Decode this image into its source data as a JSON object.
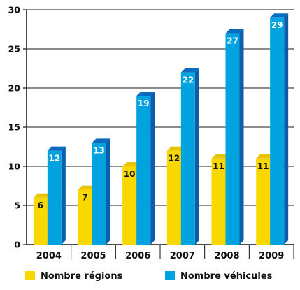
{
  "chart_data": {
    "type": "bar",
    "categories": [
      "2004",
      "2005",
      "2006",
      "2007",
      "2008",
      "2009"
    ],
    "series": [
      {
        "name": "Nombre régions",
        "values": [
          6,
          7,
          10,
          12,
          11,
          11
        ],
        "color": "#f9d800",
        "side_color": "#d9b400",
        "top_color": "#e8c400",
        "label_color": "#111111"
      },
      {
        "name": "Nombre véhicules",
        "values": [
          12,
          13,
          19,
          22,
          27,
          29
        ],
        "color": "#00a3e0",
        "side_color": "#0d5ea8",
        "top_color": "#0b6cbf",
        "label_color": "#ffffff"
      }
    ],
    "ylim": [
      0,
      30
    ],
    "yticks": [
      0,
      5,
      10,
      15,
      20,
      25,
      30
    ],
    "grid": true,
    "legend_position": "bottom",
    "data_labels": true,
    "style": "3d-bar",
    "title": "",
    "xlabel": "",
    "ylabel": ""
  }
}
